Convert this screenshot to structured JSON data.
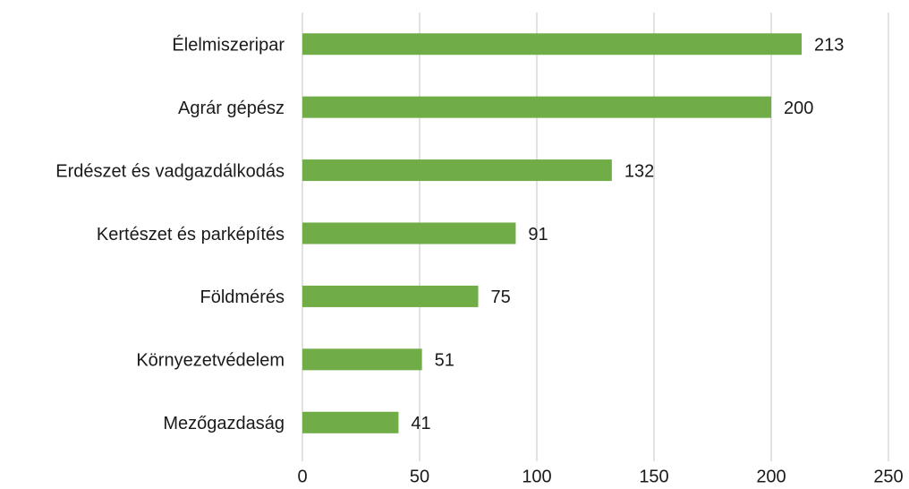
{
  "chart_data": {
    "type": "bar",
    "orientation": "horizontal",
    "categories": [
      "Élelmiszeripar",
      "Agrár gépész",
      "Erdészet és vadgazdálkodás",
      "Kertészet és parképítés",
      "Földmérés",
      "Környezetvédelem",
      "Mezőgazdaság"
    ],
    "values": [
      213,
      200,
      132,
      91,
      75,
      51,
      41
    ],
    "color": "#70ad47",
    "xlim": [
      0,
      250
    ],
    "xticks": [
      0,
      50,
      100,
      150,
      200,
      250
    ],
    "grid": true
  }
}
